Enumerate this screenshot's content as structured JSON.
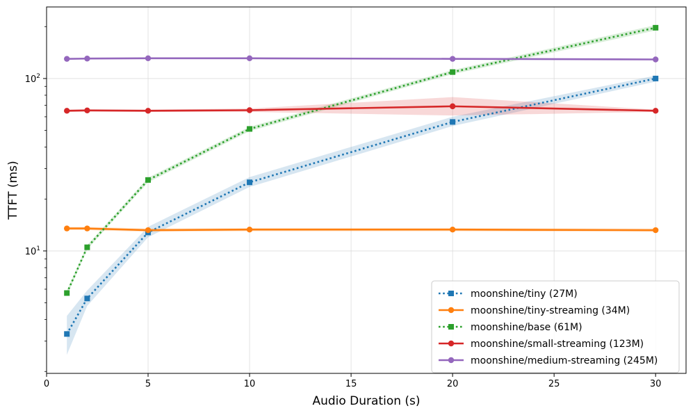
{
  "chart_data": {
    "type": "line",
    "title": "",
    "xlabel": "Audio Duration (s)",
    "ylabel": "TTFT (ms)",
    "xlim": [
      0,
      31.5
    ],
    "ylim": [
      1.95,
      260
    ],
    "yscale": "log",
    "grid": true,
    "legend_position": "lower-right",
    "x_ticks": [
      0,
      5,
      10,
      15,
      20,
      25,
      30
    ],
    "x_tick_labels": [
      "0",
      "5",
      "10",
      "15",
      "20",
      "25",
      "30"
    ],
    "y_ticks": [
      10,
      100
    ],
    "y_tick_base_labels": [
      "10",
      "10"
    ],
    "y_tick_exponents": [
      "1",
      "2"
    ],
    "x": [
      1,
      2,
      5,
      10,
      20,
      30
    ],
    "series": [
      {
        "name": "moonshine/tiny (27M)",
        "color": "#1f77b4",
        "linestyle": "dotted",
        "marker": "square",
        "values": [
          3.3,
          5.3,
          12.8,
          25.0,
          56.0,
          100.0
        ],
        "band_lower": [
          2.5,
          4.8,
          12.0,
          23.5,
          53.0,
          96.0
        ],
        "band_upper": [
          4.2,
          5.9,
          13.8,
          26.8,
          60.0,
          104.0
        ]
      },
      {
        "name": "moonshine/tiny-streaming (34M)",
        "color": "#ff7f0e",
        "linestyle": "solid",
        "marker": "circle",
        "values": [
          13.5,
          13.5,
          13.2,
          13.3,
          13.3,
          13.2
        ],
        "band_lower": [
          13.2,
          13.2,
          12.9,
          13.0,
          13.0,
          12.9
        ],
        "band_upper": [
          13.8,
          13.8,
          13.5,
          13.6,
          13.6,
          13.5
        ]
      },
      {
        "name": "moonshine/base (61M)",
        "color": "#2ca02c",
        "linestyle": "dotted",
        "marker": "square",
        "values": [
          5.7,
          10.5,
          25.8,
          51.0,
          109.0,
          197.0
        ],
        "band_lower": [
          5.5,
          10.2,
          25.0,
          49.5,
          106.0,
          190.0
        ],
        "band_upper": [
          5.9,
          10.8,
          26.6,
          52.5,
          112.0,
          204.0
        ]
      },
      {
        "name": "moonshine/small-streaming (123M)",
        "color": "#d62728",
        "linestyle": "solid",
        "marker": "circle",
        "values": [
          65.0,
          65.3,
          65.0,
          65.5,
          69.0,
          65.0
        ],
        "band_lower": [
          64.0,
          64.3,
          64.0,
          64.0,
          61.0,
          64.0
        ],
        "band_upper": [
          66.0,
          66.3,
          66.0,
          67.0,
          78.0,
          66.0
        ]
      },
      {
        "name": "moonshine/medium-streaming (245M)",
        "color": "#9467bd",
        "linestyle": "solid",
        "marker": "circle",
        "values": [
          130.0,
          130.5,
          131.0,
          131.0,
          130.0,
          129.0
        ],
        "band_lower": [
          129.0,
          129.5,
          130.0,
          130.0,
          129.0,
          128.0
        ],
        "band_upper": [
          131.0,
          131.5,
          132.0,
          132.0,
          131.0,
          130.0
        ]
      }
    ]
  }
}
